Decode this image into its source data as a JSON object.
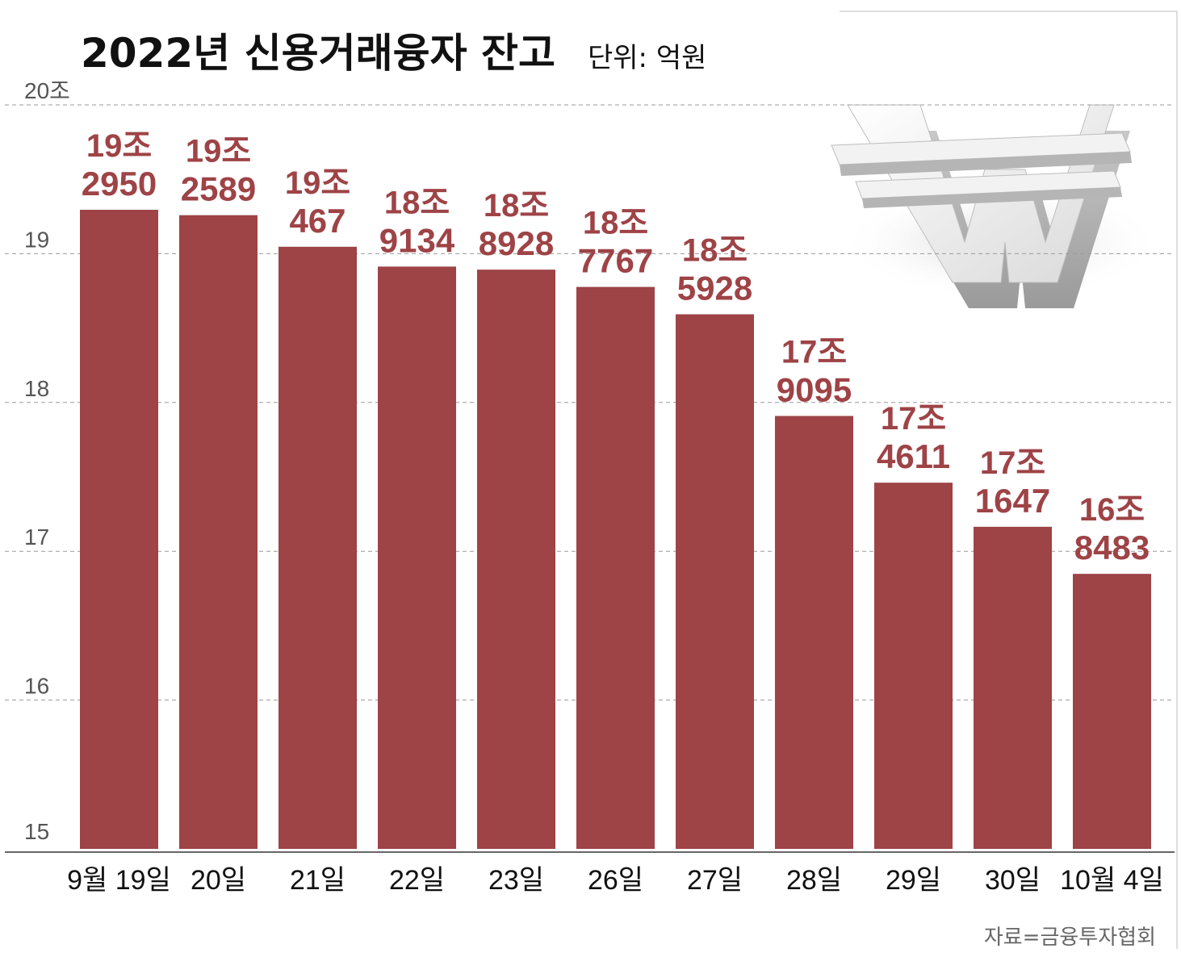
{
  "title": "2022년 신용거래융자 잔고",
  "unit": "단위: 억원",
  "source": "자료=금융투자협회",
  "colors": {
    "bar": "#9e4346",
    "label": "#9e4346",
    "grid": "#9a9a9a",
    "background": "#ffffff"
  },
  "icon": "won-currency-symbol-3d",
  "chart_data": {
    "type": "bar",
    "title": "2022년 신용거래융자 잔고",
    "xlabel": "",
    "ylabel": "",
    "ylim": [
      15,
      20
    ],
    "yticks": [
      15,
      16,
      17,
      18,
      19,
      20
    ],
    "ytick_labels": [
      "15",
      "16",
      "17",
      "18",
      "19",
      "20조"
    ],
    "grid": true,
    "categories": [
      "9월 19일",
      "20일",
      "21일",
      "22일",
      "23일",
      "26일",
      "27일",
      "28일",
      "29일",
      "30일",
      "10월 4일"
    ],
    "values": [
      192950,
      192589,
      190467,
      189134,
      188928,
      187767,
      185928,
      179095,
      174611,
      171647,
      168483
    ],
    "labels_line1": [
      "19조",
      "19조",
      "19조",
      "18조",
      "18조",
      "18조",
      "18조",
      "17조",
      "17조",
      "17조",
      "16조"
    ],
    "labels_line2": [
      "2950",
      "2589",
      "467",
      "9134",
      "8928",
      "7767",
      "5928",
      "9095",
      "4611",
      "1647",
      "8483"
    ]
  }
}
